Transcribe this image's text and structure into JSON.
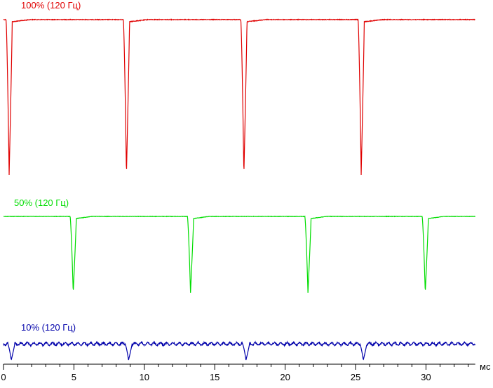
{
  "chart_data": {
    "type": "line",
    "xlabel": "мс",
    "xlim": [
      0,
      33.5
    ],
    "x_ticks": [
      0,
      5,
      10,
      15,
      20,
      25,
      30
    ],
    "x_tick_labels": [
      "0",
      "5",
      "10",
      "15",
      "20",
      "25",
      "30"
    ],
    "grid": false,
    "series": [
      {
        "name": "100% (120 Гц)",
        "color": "#e00000",
        "period_ms": 8.333,
        "first_dip_ms": 0.4,
        "dip_times_ms": [
          0.4,
          8.73,
          17.07,
          25.4
        ],
        "plateau_level": 1.0,
        "dip_depth_level": 0.0,
        "x_end_ms": 33.5
      },
      {
        "name": "50% (120 Гц)",
        "color": "#00dd00",
        "period_ms": 8.333,
        "first_dip_ms": 4.95,
        "dip_times_ms": [
          4.95,
          13.28,
          21.62,
          29.95
        ],
        "plateau_level": 1.0,
        "dip_depth_level": 0.0,
        "x_end_ms": 33.5
      },
      {
        "name": "10% (120 Гц)",
        "color": "#0000aa",
        "period_ms": 8.333,
        "first_dip_ms": 0.55,
        "dip_times_ms": [
          0.55,
          8.88,
          17.22,
          25.55
        ],
        "plateau_level": 1.0,
        "dip_depth_level": 0.0,
        "x_end_ms": 33.5
      }
    ]
  }
}
